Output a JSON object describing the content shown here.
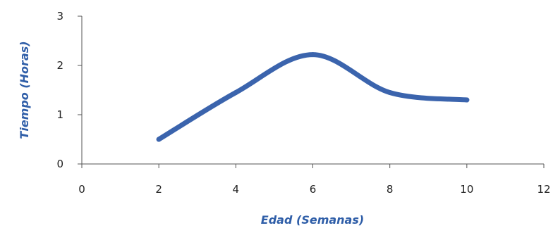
{
  "chart_data": {
    "type": "line",
    "title": "",
    "xlabel": "Edad (Semanas)",
    "ylabel": "Tiempo (Horas)",
    "xlim": [
      0,
      12
    ],
    "ylim": [
      0,
      3
    ],
    "x_ticks": [
      "0",
      "2",
      "4",
      "6",
      "8",
      "10",
      "12"
    ],
    "y_ticks": [
      "0",
      "1",
      "2",
      "3"
    ],
    "grid": false,
    "legend": "none",
    "series": [
      {
        "color": "#3b64ad",
        "x": [
          2,
          4,
          6,
          8,
          10
        ],
        "y": [
          0.5,
          1.45,
          2.22,
          1.45,
          1.3
        ]
      }
    ]
  }
}
